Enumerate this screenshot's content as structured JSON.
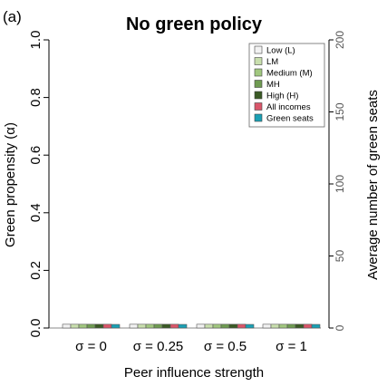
{
  "panel_label": "(a)",
  "colors": {
    "Low (L)": "#f2f2f2",
    "LM": "#c9dfae",
    "Medium (M)": "#a1c77f",
    "MH": "#6f9b52",
    "High (H)": "#3a5a25",
    "All incomes": "#d9566a",
    "Green seats": "#1aa0b4"
  },
  "chart_data": {
    "type": "bar",
    "title": "No green policy",
    "xlabel": "Peer influence strength",
    "ylabel": "Green propensity (α)",
    "ylabel_right": "Average number of green seats",
    "categories": [
      "σ = 0",
      "σ = 0.25",
      "σ = 0.5",
      "σ = 1"
    ],
    "ylim": [
      0,
      1
    ],
    "y_ticks": [
      "0.0",
      "0.2",
      "0.4",
      "0.6",
      "0.8",
      "1.0"
    ],
    "y_tick_values": [
      0,
      0.2,
      0.4,
      0.6,
      0.8,
      1.0
    ],
    "ylim_right": [
      0,
      200
    ],
    "y_ticks_right": [
      "0",
      "50",
      "100",
      "150",
      "200"
    ],
    "y_tick_values_right": [
      0,
      50,
      100,
      150,
      200
    ],
    "legend_position": "top-right",
    "grid": false,
    "series": [
      {
        "name": "Low (L)",
        "values": [
          0.013,
          0.013,
          0.013,
          0.013
        ]
      },
      {
        "name": "LM",
        "values": [
          0.013,
          0.013,
          0.013,
          0.013
        ]
      },
      {
        "name": "Medium (M)",
        "values": [
          0.013,
          0.013,
          0.013,
          0.013
        ]
      },
      {
        "name": "MH",
        "values": [
          0.013,
          0.013,
          0.013,
          0.013
        ]
      },
      {
        "name": "High (H)",
        "values": [
          0.013,
          0.013,
          0.013,
          0.013
        ]
      },
      {
        "name": "All incomes",
        "values": [
          0.013,
          0.013,
          0.013,
          0.013
        ]
      },
      {
        "name": "Green seats",
        "values": [
          2.5,
          2.5,
          2.5,
          2.5
        ],
        "axis": "right"
      }
    ]
  }
}
